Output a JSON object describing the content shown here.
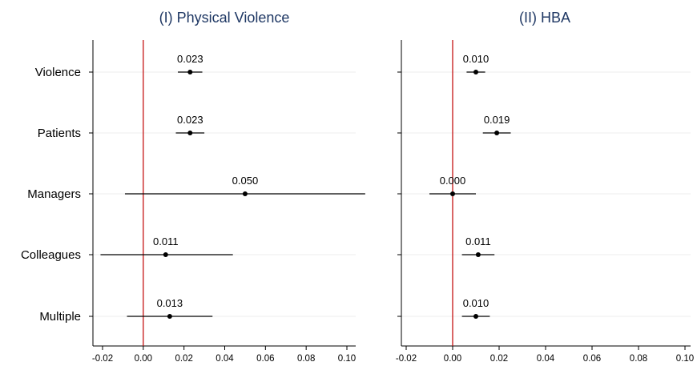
{
  "chart_data": [
    {
      "type": "scatter",
      "title": "(I) Physical Violence",
      "categories": [
        "Violence",
        "Patients",
        "Managers",
        "Colleagues",
        "Multiple"
      ],
      "points": [
        {
          "category": "Violence",
          "estimate": 0.023,
          "label": "0.023",
          "ci": [
            0.017,
            0.029
          ]
        },
        {
          "category": "Patients",
          "estimate": 0.023,
          "label": "0.023",
          "ci": [
            0.016,
            0.03
          ]
        },
        {
          "category": "Managers",
          "estimate": 0.05,
          "label": "0.050",
          "ci": [
            -0.009,
            0.109
          ]
        },
        {
          "category": "Colleagues",
          "estimate": 0.011,
          "label": "0.011",
          "ci": [
            -0.021,
            0.044
          ]
        },
        {
          "category": "Multiple",
          "estimate": 0.013,
          "label": "0.013",
          "ci": [
            -0.008,
            0.034
          ]
        }
      ],
      "xticks": [
        "-0.02",
        "0.00",
        "0.02",
        "0.04",
        "0.06",
        "0.08",
        "0.10"
      ],
      "xlim": [
        -0.022,
        0.11
      ],
      "reference_line": 0,
      "reference_color": "#c00000"
    },
    {
      "type": "scatter",
      "title": "(II) HBA",
      "categories": [
        "Violence",
        "Patients",
        "Managers",
        "Colleagues",
        "Multiple"
      ],
      "points": [
        {
          "category": "Violence",
          "estimate": 0.01,
          "label": "0.010",
          "ci": [
            0.006,
            0.014
          ]
        },
        {
          "category": "Patients",
          "estimate": 0.019,
          "label": "0.019",
          "ci": [
            0.013,
            0.025
          ]
        },
        {
          "category": "Managers",
          "estimate": 0.0,
          "label": "0.000",
          "ci": [
            -0.01,
            0.01
          ]
        },
        {
          "category": "Colleagues",
          "estimate": 0.011,
          "label": "0.011",
          "ci": [
            0.004,
            0.018
          ]
        },
        {
          "category": "Multiple",
          "estimate": 0.01,
          "label": "0.010",
          "ci": [
            0.004,
            0.016
          ]
        }
      ],
      "xticks": [
        "-0.02",
        "0.00",
        "0.02",
        "0.04",
        "0.06",
        "0.08",
        "0.10"
      ],
      "xlim": [
        -0.022,
        0.101
      ],
      "reference_line": 0,
      "reference_color": "#c00000"
    }
  ],
  "colors": {
    "title": "#1f3864",
    "point": "#000000",
    "ci_line": "#000000",
    "gridline": "#eeeeee",
    "axis": "#000000"
  }
}
